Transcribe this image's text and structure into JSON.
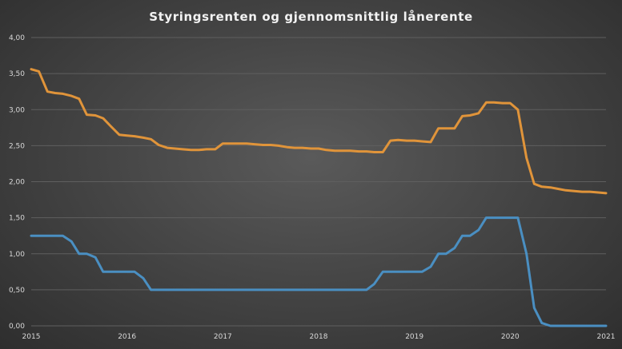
{
  "chart_data": {
    "type": "line",
    "title": "Styringsrenten og gjennomsnittlig lånerente",
    "xlabel": "",
    "ylabel": "",
    "ylim": [
      0,
      4
    ],
    "yticks": [
      "0,00",
      "0,50",
      "1,00",
      "1,50",
      "2,00",
      "2,50",
      "3,00",
      "3,50",
      "4,00"
    ],
    "xlim": [
      2015,
      2021
    ],
    "xticks": [
      "2015",
      "2016",
      "2017",
      "2018",
      "2019",
      "2020",
      "2021"
    ],
    "grid": true,
    "legend": "none",
    "colors": {
      "series_1": "#4a8fc2",
      "series_2": "#e0943a",
      "grid": "#5f5f5f",
      "text": "#d9d9d9"
    },
    "series": [
      {
        "color": "#4a8fc2",
        "x": [
          2015.0,
          2015.25,
          2015.33,
          2015.42,
          2015.5,
          2015.58,
          2015.67,
          2015.75,
          2016.0,
          2016.08,
          2016.17,
          2016.25,
          2016.5,
          2017.0,
          2017.5,
          2018.0,
          2018.5,
          2018.58,
          2018.67,
          2018.75,
          2019.0,
          2019.08,
          2019.17,
          2019.25,
          2019.33,
          2019.42,
          2019.5,
          2019.58,
          2019.67,
          2019.75,
          2020.0,
          2020.08,
          2020.17,
          2020.25,
          2020.33,
          2020.42,
          2020.5,
          2021.0
        ],
        "values": [
          1.25,
          1.25,
          1.25,
          1.17,
          1.0,
          1.0,
          0.95,
          0.75,
          0.75,
          0.75,
          0.66,
          0.5,
          0.5,
          0.5,
          0.5,
          0.5,
          0.5,
          0.58,
          0.75,
          0.75,
          0.75,
          0.75,
          0.82,
          1.0,
          1.0,
          1.08,
          1.25,
          1.25,
          1.33,
          1.5,
          1.5,
          1.5,
          1.0,
          0.25,
          0.04,
          0.0,
          0.0,
          0.0
        ]
      },
      {
        "color": "#e0943a",
        "x": [
          2015.0,
          2015.08,
          2015.17,
          2015.25,
          2015.33,
          2015.42,
          2015.5,
          2015.58,
          2015.67,
          2015.75,
          2015.83,
          2015.92,
          2016.0,
          2016.08,
          2016.17,
          2016.25,
          2016.33,
          2016.42,
          2016.5,
          2016.58,
          2016.67,
          2016.75,
          2016.83,
          2016.92,
          2017.0,
          2017.08,
          2017.17,
          2017.25,
          2017.33,
          2017.42,
          2017.5,
          2017.58,
          2017.67,
          2017.75,
          2017.83,
          2017.92,
          2018.0,
          2018.08,
          2018.17,
          2018.25,
          2018.33,
          2018.42,
          2018.5,
          2018.58,
          2018.67,
          2018.75,
          2018.83,
          2018.92,
          2019.0,
          2019.08,
          2019.17,
          2019.25,
          2019.33,
          2019.42,
          2019.5,
          2019.58,
          2019.67,
          2019.75,
          2019.83,
          2019.92,
          2020.0,
          2020.08,
          2020.17,
          2020.25,
          2020.33,
          2020.42,
          2020.5,
          2020.58,
          2020.67,
          2020.75,
          2020.83,
          2020.92,
          2021.0
        ],
        "values": [
          3.56,
          3.53,
          3.25,
          3.23,
          3.22,
          3.19,
          3.15,
          2.93,
          2.92,
          2.88,
          2.77,
          2.65,
          2.64,
          2.63,
          2.61,
          2.59,
          2.51,
          2.47,
          2.46,
          2.45,
          2.44,
          2.44,
          2.45,
          2.45,
          2.53,
          2.53,
          2.53,
          2.53,
          2.52,
          2.51,
          2.51,
          2.5,
          2.48,
          2.47,
          2.47,
          2.46,
          2.46,
          2.44,
          2.43,
          2.43,
          2.43,
          2.42,
          2.42,
          2.41,
          2.41,
          2.57,
          2.58,
          2.57,
          2.57,
          2.56,
          2.55,
          2.74,
          2.74,
          2.74,
          2.91,
          2.92,
          2.95,
          3.1,
          3.1,
          3.09,
          3.09,
          3.0,
          2.33,
          1.97,
          1.93,
          1.92,
          1.9,
          1.88,
          1.87,
          1.86,
          1.86,
          1.85,
          1.84
        ]
      }
    ]
  }
}
